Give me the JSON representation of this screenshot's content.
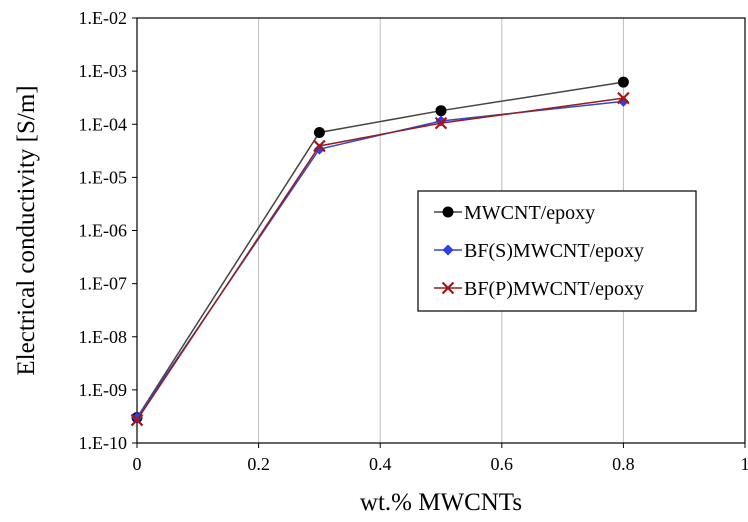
{
  "chart_data": {
    "type": "line",
    "title": "",
    "xlabel": "wt.% MWCNTs",
    "ylabel": "Electrical conductivity [S/m]",
    "x_scale": "linear",
    "y_scale": "log",
    "xlim": [
      0,
      1
    ],
    "ylim": [
      1e-10,
      0.01
    ],
    "x_ticks": [
      {
        "value": 0,
        "label": "0"
      },
      {
        "value": 0.2,
        "label": "0.2"
      },
      {
        "value": 0.4,
        "label": "0.4"
      },
      {
        "value": 0.6,
        "label": "0.6"
      },
      {
        "value": 0.8,
        "label": "0.8"
      },
      {
        "value": 1,
        "label": "1"
      }
    ],
    "y_ticks": [
      {
        "value": 0.01,
        "label": "1.E-02"
      },
      {
        "value": 0.001,
        "label": "1.E-03"
      },
      {
        "value": 0.0001,
        "label": "1.E-04"
      },
      {
        "value": 1e-05,
        "label": "1.E-05"
      },
      {
        "value": 1e-06,
        "label": "1.E-06"
      },
      {
        "value": 1e-07,
        "label": "1.E-07"
      },
      {
        "value": 1e-08,
        "label": "1.E-08"
      },
      {
        "value": 1e-09,
        "label": "1.E-09"
      },
      {
        "value": 1e-10,
        "label": "1.E-10"
      }
    ],
    "grid": "vertical",
    "legend_position": "right-middle",
    "series": [
      {
        "name": "MWCNT/epoxy",
        "marker": "circle",
        "color": "#000000",
        "line_color": "#444444",
        "x": [
          0,
          0.3,
          0.5,
          0.8
        ],
        "y": [
          3e-10,
          7e-05,
          0.00018,
          0.00062
        ]
      },
      {
        "name": "BF(S)MWCNT/epoxy",
        "marker": "diamond",
        "color": "#2b3ff0",
        "line_color": "#3b46c9",
        "x": [
          0,
          0.3,
          0.5,
          0.8
        ],
        "y": [
          3e-10,
          3.4e-05,
          0.000115,
          0.00027
        ]
      },
      {
        "name": "BF(P)MWCNT/epoxy",
        "marker": "x",
        "color": "#a01818",
        "line_color": "#8f2020",
        "x": [
          0,
          0.3,
          0.5,
          0.8
        ],
        "y": [
          2.7e-10,
          3.9e-05,
          0.000105,
          0.00031
        ]
      }
    ]
  }
}
